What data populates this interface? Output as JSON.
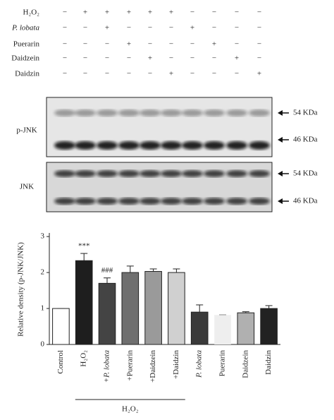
{
  "treatments": {
    "rows": [
      {
        "label": "H₂O₂",
        "signs": [
          "−",
          "+",
          "+",
          "+",
          "+",
          "+",
          "−",
          "−",
          "−",
          "−"
        ]
      },
      {
        "label": "P. lobata",
        "signs": [
          "−",
          "−",
          "+",
          "−",
          "−",
          "−",
          "+",
          "−",
          "−",
          "−"
        ]
      },
      {
        "label": "Puerarin",
        "signs": [
          "−",
          "−",
          "−",
          "+",
          "−",
          "−",
          "−",
          "+",
          "−",
          "−"
        ]
      },
      {
        "label": "Daidzein",
        "signs": [
          "−",
          "−",
          "−",
          "−",
          "+",
          "−",
          "−",
          "−",
          "+",
          "−"
        ]
      },
      {
        "label": "Daidzin",
        "signs": [
          "−",
          "−",
          "−",
          "−",
          "−",
          "+",
          "−",
          "−",
          "−",
          "+"
        ]
      }
    ]
  },
  "blots": [
    {
      "label": "p-JNK",
      "markers": [
        "54 KDa",
        "46 KDa"
      ]
    },
    {
      "label": "JNK",
      "markers": [
        "54 KDa",
        "46 KDa"
      ]
    }
  ],
  "chart_data": {
    "type": "bar",
    "y_label": "Relative density (p-JNK/JNK)",
    "categories": [
      "Control",
      "H₂O₂",
      "+P. lobata",
      "+Puerarin",
      "+Daidzein",
      "+Daidzin",
      "P. lobata",
      "Puerarin",
      "Daidzein",
      "Daidzin"
    ],
    "values": [
      1.0,
      2.33,
      1.7,
      2.0,
      2.03,
      2.0,
      0.9,
      0.82,
      0.88,
      1.0
    ],
    "errors": [
      0,
      0.2,
      0.15,
      0.18,
      0.07,
      0.1,
      0.2,
      0,
      0.03,
      0.08
    ],
    "colors": [
      "#ffffff",
      "#1e1e1e",
      "#444444",
      "#6f6f6f",
      "#9a9a9a",
      "#d0d0d0",
      "#3a3a3a",
      "#eeeeee",
      "#b0b0b0",
      "#222222"
    ],
    "annotations": [
      {
        "text": "***",
        "index": 1
      },
      {
        "text": "###",
        "index": 2
      }
    ],
    "group_label": "H₂O₂",
    "ylim": [
      0,
      3.1
    ],
    "yticks": [
      0,
      1,
      2,
      3
    ]
  }
}
